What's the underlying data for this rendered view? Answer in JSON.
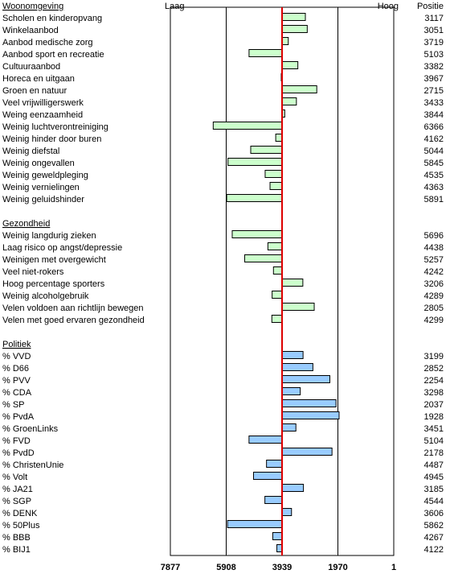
{
  "chart_data": {
    "type": "bar",
    "orientation": "horizontal",
    "top_left_label": "Laag",
    "top_right_label": "Hoog",
    "position_header": "Positie",
    "x_axis": {
      "min": 7877,
      "max": 1,
      "reversed": true,
      "ticks": [
        7877,
        5908,
        3939,
        1970,
        1
      ],
      "reference": 3939
    },
    "sections": [
      {
        "title": "Woonomgeving",
        "color": "#ccffcc",
        "items": [
          {
            "label": "Scholen en kinderopvang",
            "value": 3117
          },
          {
            "label": "Winkelaanbod",
            "value": 3051
          },
          {
            "label": "Aanbod medische zorg",
            "value": 3719
          },
          {
            "label": "Aanbod sport en recreatie",
            "value": 5103
          },
          {
            "label": "Cultuuraanbod",
            "value": 3382
          },
          {
            "label": "Horeca en uitgaan",
            "value": 3967
          },
          {
            "label": "Groen en natuur",
            "value": 2715
          },
          {
            "label": "Veel vrijwilligerswerk",
            "value": 3433
          },
          {
            "label": "Weing eenzaamheid",
            "value": 3844
          },
          {
            "label": "Weinig luchtverontreiniging",
            "value": 6366
          },
          {
            "label": "Weinig hinder door buren",
            "value": 4162
          },
          {
            "label": "Weinig diefstal",
            "value": 5044
          },
          {
            "label": "Weinig ongevallen",
            "value": 5845
          },
          {
            "label": "Weinig geweldpleging",
            "value": 4535
          },
          {
            "label": "Weinig vernielingen",
            "value": 4363
          },
          {
            "label": "Weinig geluidshinder",
            "value": 5891
          }
        ]
      },
      {
        "title": "Gezondheid",
        "color": "#ccffcc",
        "items": [
          {
            "label": "Weinig langdurig zieken",
            "value": 5696
          },
          {
            "label": "Laag risico op angst/depressie",
            "value": 4438
          },
          {
            "label": "Weinigen met overgewicht",
            "value": 5257
          },
          {
            "label": "Veel niet-rokers",
            "value": 4242
          },
          {
            "label": "Hoog percentage sporters",
            "value": 3206
          },
          {
            "label": "Weinig alcoholgebruik",
            "value": 4289
          },
          {
            "label": "Velen voldoen aan richtlijn bewegen",
            "value": 2805
          },
          {
            "label": "Velen met goed ervaren gezondheid",
            "value": 4299
          }
        ]
      },
      {
        "title": "Politiek",
        "color": "#99ccff",
        "items": [
          {
            "label": "% VVD",
            "value": 3199
          },
          {
            "label": "% D66",
            "value": 2852
          },
          {
            "label": "% PVV",
            "value": 2254
          },
          {
            "label": "% CDA",
            "value": 3298
          },
          {
            "label": "% SP",
            "value": 2037
          },
          {
            "label": "% PvdA",
            "value": 1928
          },
          {
            "label": "% GroenLinks",
            "value": 3451
          },
          {
            "label": "% FVD",
            "value": 5104
          },
          {
            "label": "% PvdD",
            "value": 2178
          },
          {
            "label": "% ChristenUnie",
            "value": 4487
          },
          {
            "label": "% Volt",
            "value": 4945
          },
          {
            "label": "% JA21",
            "value": 3185
          },
          {
            "label": "% SGP",
            "value": 4544
          },
          {
            "label": "% DENK",
            "value": 3606
          },
          {
            "label": "% 50Plus",
            "value": 5862
          },
          {
            "label": "% BBB",
            "value": 4267
          },
          {
            "label": "% BIJ1",
            "value": 4122
          }
        ]
      }
    ],
    "reference_line_color": "#dd0000",
    "gridlines": true
  }
}
